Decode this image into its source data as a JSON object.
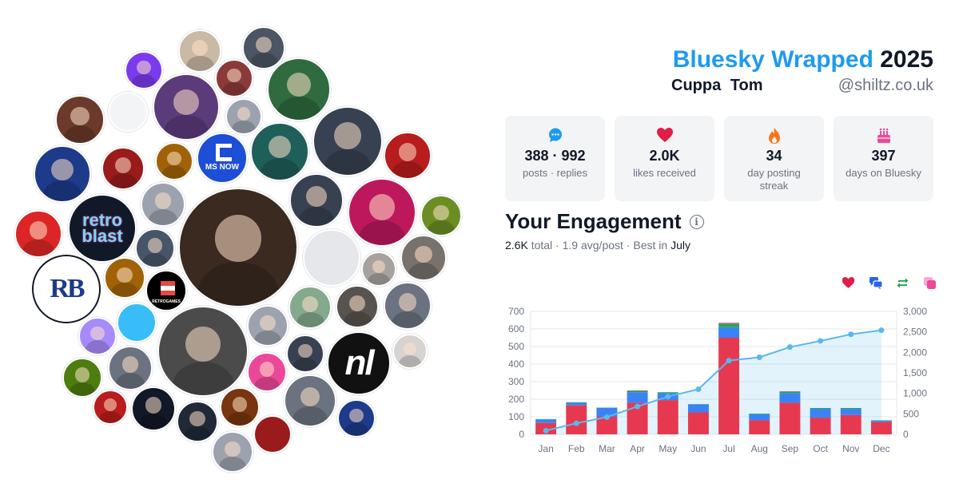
{
  "header": {
    "brand": "Bluesky Wrapped",
    "year": "2025",
    "display_name": "Cuppa  Tom",
    "handle": "@shiltz.co.uk"
  },
  "stats": [
    {
      "icon": "chat-bubble-icon",
      "color": "#1d9bf0",
      "value": "388 · 992",
      "label": "posts · replies"
    },
    {
      "icon": "heart-icon",
      "color": "#e11d48",
      "value": "2.0K",
      "label": "likes received"
    },
    {
      "icon": "flame-icon",
      "color": "#f97316",
      "value": "34",
      "label": "day posting streak"
    },
    {
      "icon": "cake-icon",
      "color": "#ec4899",
      "value": "397",
      "label": "days on Bluesky"
    }
  ],
  "engagement": {
    "title": "Your Engagement",
    "total": "2.6K",
    "total_word": "total",
    "avg": "1.9 avg/post",
    "best_prefix": "Best in",
    "best_month": "July"
  },
  "legend": [
    {
      "icon": "heart-icon",
      "color": "#e11d48"
    },
    {
      "icon": "reply-icon",
      "color": "#2563eb"
    },
    {
      "icon": "repost-icon",
      "color": "#16a34a"
    },
    {
      "icon": "quote-icon",
      "color": "#ec4899"
    }
  ],
  "avatars": {
    "logos": {
      "msnow": "MS NOW",
      "retro": "retro",
      "blast": "blast",
      "rb": "RB",
      "nl": "nl",
      "retrogames": "RETROGAMES"
    }
  },
  "chart_data": {
    "type": "bar",
    "categories": [
      "Jan",
      "Feb",
      "Mar",
      "Apr",
      "May",
      "Jun",
      "Jul",
      "Aug",
      "Sep",
      "Oct",
      "Nov",
      "Dec"
    ],
    "series": [
      {
        "type": "bar",
        "color": "#e63950",
        "values": [
          65,
          165,
          100,
          180,
          195,
          125,
          550,
          80,
          180,
          95,
          110,
          70
        ]
      },
      {
        "type": "bar",
        "color": "#3b82f6",
        "values": [
          20,
          15,
          50,
          60,
          40,
          45,
          60,
          35,
          55,
          50,
          35,
          8
        ]
      },
      {
        "type": "bar",
        "color": "#22a94b",
        "values": [
          2,
          3,
          2,
          8,
          5,
          2,
          20,
          3,
          8,
          5,
          5,
          2
        ]
      },
      {
        "type": "bar",
        "color": "#ec4899",
        "values": [
          0,
          0,
          0,
          2,
          0,
          0,
          5,
          0,
          2,
          0,
          0,
          0
        ]
      },
      {
        "type": "area",
        "axis": "right",
        "color": "#5bb8ec",
        "values": [
          90,
          270,
          420,
          680,
          920,
          1100,
          1800,
          1880,
          2130,
          2280,
          2440,
          2540
        ]
      }
    ],
    "ylim": [
      0,
      700
    ],
    "y2lim": [
      0,
      3000
    ],
    "yticks": [
      "0",
      "100",
      "200",
      "300",
      "400",
      "500",
      "600",
      "700"
    ],
    "y2ticks": [
      "0",
      "500",
      "1,000",
      "1,500",
      "2,000",
      "2,500",
      "3,000"
    ],
    "grid": true
  }
}
